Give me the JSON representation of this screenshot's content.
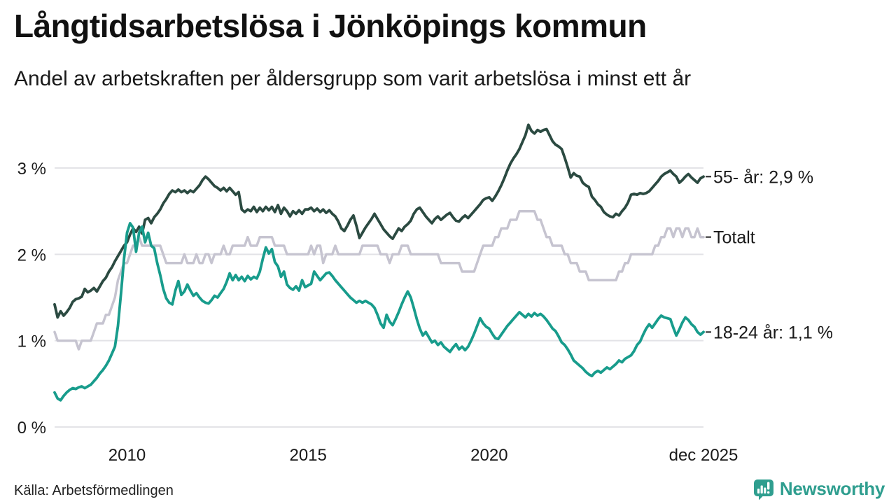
{
  "header": {
    "title": "Långtidsarbetslösa i Jönköpings kommun",
    "subtitle": "Andel av arbetskraften per åldersgrupp som varit arbetslösa i minst ett år"
  },
  "footer": {
    "source": "Källa: Arbetsförmedlingen",
    "brand_name": "Newsworthy",
    "brand_icon": "bar-chart-speech-bubble-icon"
  },
  "colors": {
    "series_55": "#2B4A41",
    "series_total": "#C6C4D0",
    "series_1824": "#189C8C",
    "grid": "#E3E3E7",
    "text": "#1A1A1A",
    "end_label_tick": "#222222",
    "brand": "#2F9E8F"
  },
  "chart_data": {
    "type": "line",
    "title": "Långtidsarbetslösa i Jönköpings kommun",
    "xlabel": "",
    "ylabel": "",
    "x_unit": "month",
    "x_start_year": 2008,
    "ylim": [
      0,
      3.6
    ],
    "grid": "horizontal",
    "legend_position": "right-end-labels",
    "y_ticks": [
      {
        "label": "0 %",
        "value": 0
      },
      {
        "label": "1 %",
        "value": 1
      },
      {
        "label": "2 %",
        "value": 2
      },
      {
        "label": "3 %",
        "value": 3
      }
    ],
    "x_ticks": [
      {
        "label": "2010",
        "month_index": 24
      },
      {
        "label": "2015",
        "month_index": 84
      },
      {
        "label": "2020",
        "month_index": 144
      },
      {
        "label": "dec 2025",
        "month_index": 215
      }
    ],
    "series": [
      {
        "name": "Totalt",
        "end_label": "Totalt",
        "color_key": "series_total",
        "stroke_width": 3.5,
        "values": [
          1.1,
          1.0,
          1.0,
          1.0,
          1.0,
          1.0,
          1.0,
          1.0,
          0.9,
          1.0,
          1.0,
          1.0,
          1.0,
          1.1,
          1.2,
          1.2,
          1.2,
          1.3,
          1.3,
          1.4,
          1.5,
          1.7,
          1.8,
          1.9,
          1.9,
          2.0,
          2.1,
          2.1,
          2.2,
          2.1,
          2.1,
          2.1,
          2.1,
          2.1,
          2.1,
          2.1,
          2.0,
          1.9,
          1.9,
          1.9,
          1.9,
          1.9,
          1.9,
          2.0,
          1.9,
          1.9,
          1.9,
          2.0,
          1.9,
          1.9,
          2.0,
          2.0,
          1.9,
          2.0,
          2.0,
          2.0,
          2.1,
          2.0,
          2.0,
          2.1,
          2.1,
          2.1,
          2.1,
          2.1,
          2.2,
          2.1,
          2.1,
          2.1,
          2.2,
          2.2,
          2.2,
          2.2,
          2.2,
          2.1,
          2.1,
          2.1,
          2.1,
          2.0,
          2.0,
          2.0,
          2.0,
          2.0,
          2.0,
          2.0,
          2.0,
          2.1,
          2.0,
          2.1,
          2.1,
          1.9,
          2.0,
          2.0,
          2.0,
          2.1,
          2.0,
          2.0,
          2.0,
          2.0,
          2.0,
          2.0,
          2.0,
          2.0,
          2.1,
          2.1,
          2.1,
          2.1,
          2.1,
          2.1,
          2.0,
          2.0,
          2.0,
          1.9,
          2.0,
          2.0,
          2.0,
          2.1,
          2.1,
          2.1,
          2.0,
          2.0,
          2.0,
          2.0,
          2.0,
          2.0,
          2.0,
          2.0,
          2.0,
          2.0,
          1.9,
          1.9,
          1.9,
          1.9,
          1.9,
          1.9,
          1.9,
          1.8,
          1.8,
          1.8,
          1.8,
          1.8,
          1.9,
          2.0,
          2.1,
          2.1,
          2.1,
          2.1,
          2.2,
          2.2,
          2.3,
          2.3,
          2.3,
          2.4,
          2.4,
          2.4,
          2.5,
          2.5,
          2.5,
          2.5,
          2.5,
          2.5,
          2.4,
          2.4,
          2.3,
          2.2,
          2.2,
          2.1,
          2.1,
          2.1,
          2.1,
          2.0,
          2.0,
          1.9,
          1.9,
          1.9,
          1.8,
          1.8,
          1.8,
          1.7,
          1.7,
          1.7,
          1.7,
          1.7,
          1.7,
          1.7,
          1.7,
          1.7,
          1.7,
          1.8,
          1.8,
          1.9,
          1.9,
          2.0,
          2.0,
          2.0,
          2.0,
          2.0,
          2.0,
          2.0,
          2.0,
          2.1,
          2.1,
          2.2,
          2.2,
          2.3,
          2.3,
          2.2,
          2.3,
          2.3,
          2.2,
          2.3,
          2.3,
          2.2,
          2.2,
          2.3,
          2.2,
          2.2
        ]
      },
      {
        "name": "55- år",
        "end_label": "55- år: 2,9 %",
        "color_key": "series_55",
        "stroke_width": 3.8,
        "values": [
          1.42,
          1.27,
          1.34,
          1.29,
          1.33,
          1.38,
          1.45,
          1.48,
          1.49,
          1.51,
          1.6,
          1.56,
          1.58,
          1.61,
          1.57,
          1.63,
          1.69,
          1.73,
          1.8,
          1.85,
          1.92,
          1.98,
          2.04,
          2.1,
          2.14,
          2.23,
          2.3,
          2.26,
          2.32,
          2.24,
          2.4,
          2.42,
          2.36,
          2.43,
          2.47,
          2.52,
          2.59,
          2.64,
          2.7,
          2.74,
          2.72,
          2.75,
          2.72,
          2.74,
          2.71,
          2.74,
          2.72,
          2.76,
          2.8,
          2.86,
          2.9,
          2.87,
          2.83,
          2.79,
          2.77,
          2.74,
          2.77,
          2.73,
          2.77,
          2.73,
          2.69,
          2.72,
          2.52,
          2.49,
          2.52,
          2.5,
          2.55,
          2.49,
          2.54,
          2.5,
          2.55,
          2.51,
          2.55,
          2.49,
          2.57,
          2.47,
          2.54,
          2.5,
          2.44,
          2.5,
          2.47,
          2.51,
          2.47,
          2.52,
          2.52,
          2.54,
          2.5,
          2.53,
          2.49,
          2.52,
          2.48,
          2.51,
          2.47,
          2.44,
          2.38,
          2.3,
          2.27,
          2.33,
          2.4,
          2.45,
          2.33,
          2.19,
          2.25,
          2.31,
          2.36,
          2.41,
          2.47,
          2.41,
          2.35,
          2.29,
          2.25,
          2.21,
          2.18,
          2.24,
          2.3,
          2.27,
          2.32,
          2.35,
          2.39,
          2.47,
          2.52,
          2.54,
          2.49,
          2.44,
          2.4,
          2.36,
          2.41,
          2.44,
          2.4,
          2.43,
          2.46,
          2.48,
          2.43,
          2.39,
          2.38,
          2.42,
          2.45,
          2.42,
          2.46,
          2.5,
          2.54,
          2.58,
          2.63,
          2.65,
          2.66,
          2.62,
          2.67,
          2.73,
          2.8,
          2.88,
          2.97,
          3.05,
          3.11,
          3.16,
          3.22,
          3.3,
          3.38,
          3.5,
          3.43,
          3.4,
          3.44,
          3.42,
          3.44,
          3.45,
          3.38,
          3.31,
          3.27,
          3.25,
          3.22,
          3.12,
          3.01,
          2.89,
          2.94,
          2.91,
          2.9,
          2.83,
          2.8,
          2.78,
          2.67,
          2.63,
          2.58,
          2.55,
          2.49,
          2.46,
          2.44,
          2.43,
          2.47,
          2.45,
          2.5,
          2.54,
          2.6,
          2.69,
          2.7,
          2.69,
          2.71,
          2.7,
          2.71,
          2.73,
          2.77,
          2.81,
          2.85,
          2.9,
          2.93,
          2.95,
          2.97,
          2.93,
          2.9,
          2.83,
          2.86,
          2.9,
          2.93,
          2.89,
          2.86,
          2.83,
          2.88,
          2.9
        ]
      },
      {
        "name": "18-24 år",
        "end_label": "18-24 år: 1,1 %",
        "color_key": "series_1824",
        "stroke_width": 3.8,
        "values": [
          0.4,
          0.33,
          0.31,
          0.36,
          0.4,
          0.43,
          0.45,
          0.44,
          0.46,
          0.47,
          0.45,
          0.47,
          0.49,
          0.53,
          0.57,
          0.62,
          0.66,
          0.71,
          0.77,
          0.85,
          0.93,
          1.17,
          1.55,
          1.95,
          2.25,
          2.36,
          2.31,
          2.03,
          2.25,
          2.32,
          2.14,
          2.25,
          2.1,
          2.07,
          1.9,
          1.76,
          1.6,
          1.49,
          1.44,
          1.42,
          1.58,
          1.69,
          1.53,
          1.57,
          1.65,
          1.58,
          1.52,
          1.55,
          1.5,
          1.46,
          1.44,
          1.43,
          1.47,
          1.52,
          1.5,
          1.55,
          1.6,
          1.68,
          1.78,
          1.7,
          1.76,
          1.7,
          1.74,
          1.69,
          1.75,
          1.71,
          1.74,
          1.72,
          1.8,
          1.95,
          2.08,
          2.01,
          2.06,
          1.91,
          1.86,
          1.74,
          1.8,
          1.65,
          1.61,
          1.59,
          1.63,
          1.58,
          1.7,
          1.62,
          1.64,
          1.66,
          1.8,
          1.75,
          1.7,
          1.74,
          1.78,
          1.79,
          1.75,
          1.7,
          1.66,
          1.62,
          1.58,
          1.54,
          1.5,
          1.47,
          1.44,
          1.46,
          1.44,
          1.46,
          1.44,
          1.42,
          1.38,
          1.3,
          1.2,
          1.15,
          1.3,
          1.22,
          1.18,
          1.25,
          1.33,
          1.42,
          1.5,
          1.57,
          1.5,
          1.38,
          1.25,
          1.14,
          1.06,
          1.1,
          1.04,
          0.98,
          1.0,
          0.95,
          0.98,
          0.93,
          0.9,
          0.87,
          0.92,
          0.96,
          0.9,
          0.93,
          0.89,
          0.93,
          1.0,
          1.08,
          1.17,
          1.26,
          1.2,
          1.16,
          1.14,
          1.08,
          1.03,
          1.02,
          1.07,
          1.12,
          1.17,
          1.21,
          1.25,
          1.29,
          1.33,
          1.3,
          1.27,
          1.31,
          1.28,
          1.32,
          1.29,
          1.31,
          1.28,
          1.24,
          1.19,
          1.14,
          1.11,
          1.05,
          0.98,
          0.95,
          0.9,
          0.84,
          0.77,
          0.74,
          0.71,
          0.68,
          0.64,
          0.61,
          0.59,
          0.63,
          0.65,
          0.63,
          0.66,
          0.69,
          0.67,
          0.7,
          0.73,
          0.77,
          0.75,
          0.79,
          0.81,
          0.83,
          0.88,
          0.95,
          0.99,
          1.07,
          1.14,
          1.19,
          1.15,
          1.2,
          1.25,
          1.29,
          1.27,
          1.26,
          1.25,
          1.15,
          1.06,
          1.13,
          1.21,
          1.27,
          1.24,
          1.19,
          1.16,
          1.1,
          1.07,
          1.1
        ]
      }
    ]
  }
}
